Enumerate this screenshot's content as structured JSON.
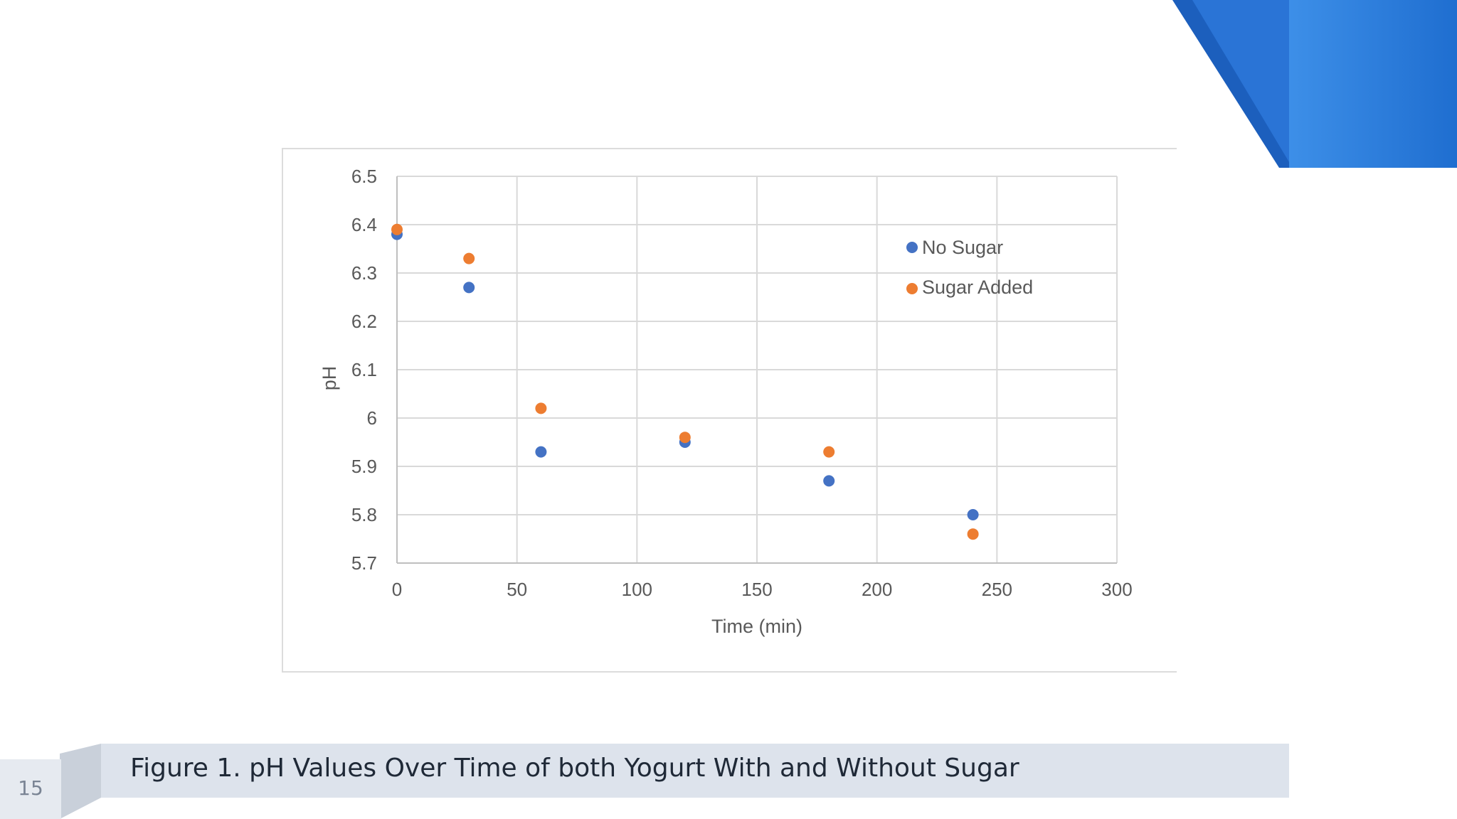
{
  "slide": {
    "page_number": "15",
    "caption": "Figure 1. pH Values Over Time of both Yogurt With and Without Sugar"
  },
  "colors": {
    "no_sugar": "#4472c4",
    "sugar_added": "#ed7d31",
    "accent_blue": "#1e6fd0"
  },
  "chart_data": {
    "type": "scatter",
    "title": "",
    "xlabel": "Time (min)",
    "ylabel": "pH",
    "xlim": [
      0,
      300
    ],
    "ylim": [
      5.7,
      6.5
    ],
    "x_ticks": [
      "0",
      "50",
      "100",
      "150",
      "200",
      "250",
      "300"
    ],
    "y_ticks": [
      "5.7",
      "5.8",
      "5.9",
      "6",
      "6.1",
      "6.2",
      "6.3",
      "6.4",
      "6.5"
    ],
    "grid": true,
    "legend_position": "top-right",
    "series": [
      {
        "name": "No Sugar",
        "color": "#4472c4",
        "x": [
          0,
          30,
          60,
          120,
          180,
          240
        ],
        "y": [
          6.38,
          6.27,
          5.93,
          5.95,
          5.87,
          5.8
        ]
      },
      {
        "name": "Sugar Added",
        "color": "#ed7d31",
        "x": [
          0,
          30,
          60,
          120,
          180,
          240
        ],
        "y": [
          6.39,
          6.33,
          6.02,
          5.96,
          5.93,
          5.76
        ]
      }
    ]
  }
}
